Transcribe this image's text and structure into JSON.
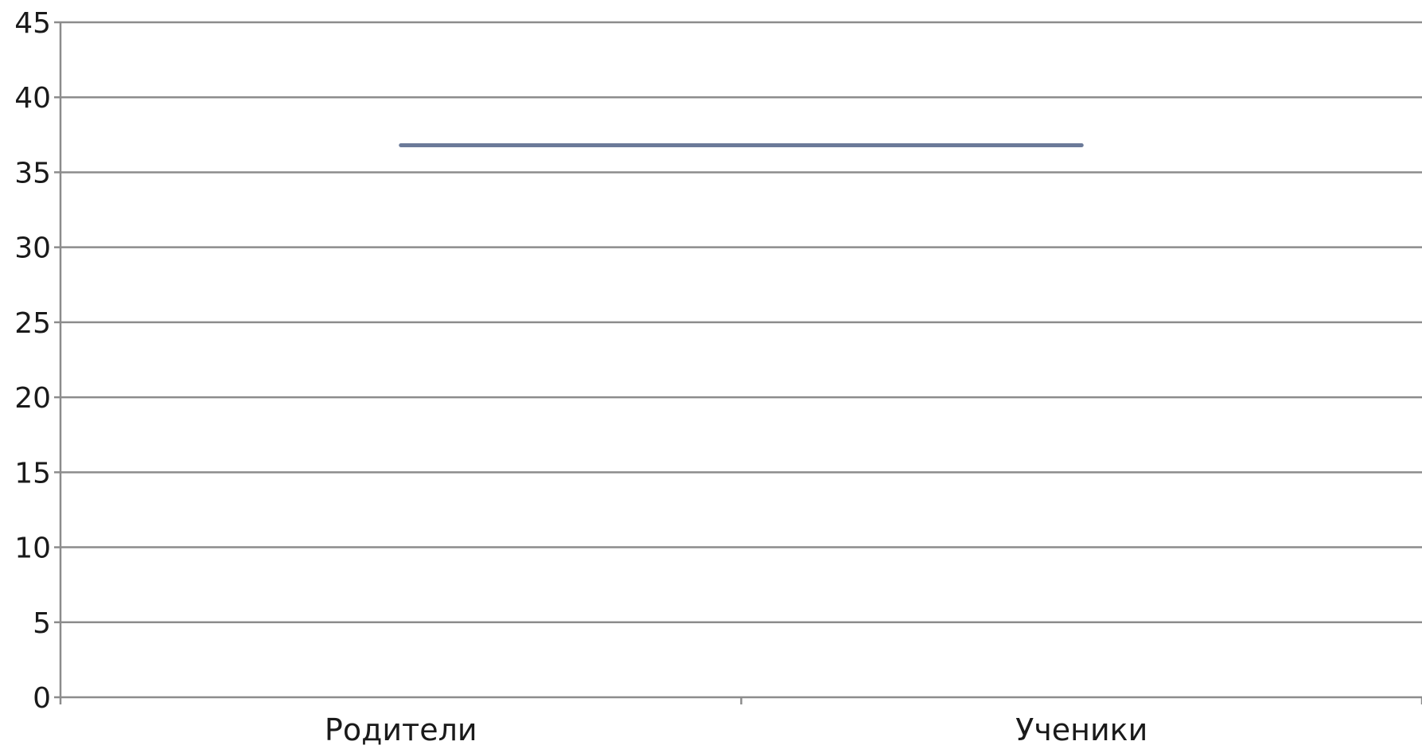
{
  "chart_data": {
    "type": "line",
    "title": "",
    "xlabel": "",
    "ylabel": "",
    "categories": [
      "Родители",
      "Ученики"
    ],
    "series": [
      {
        "values": [
          36.8,
          36.8
        ]
      }
    ],
    "ylim": [
      0,
      45
    ],
    "yticks": [
      "0",
      "5",
      "10",
      "15",
      "20",
      "25",
      "30",
      "35",
      "40",
      "45"
    ],
    "grid": true,
    "legend": "none",
    "colors": {
      "line": "#6b7a99",
      "grid": "#8c8c8c",
      "axis": "#8c8c8c"
    }
  }
}
